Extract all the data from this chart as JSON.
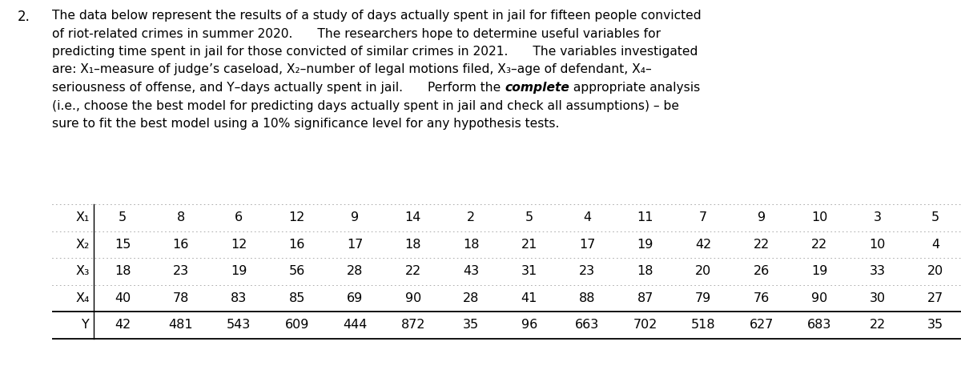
{
  "question_number": "2.",
  "lines": [
    "The data below represent the results of a study of days actually spent in jail for fifteen people convicted",
    "of riot-related crimes in summer 2020.  The researchers hope to determine useful variables for",
    "predicting time spent in jail for those convicted of similar crimes in 2021.  The variables investigated",
    "are: X₁–measure of judge’s caseload, X₂–number of legal motions filed, X₃–age of defendant, X₄–",
    "seriousness of offense, and Y–days actually spent in jail.  Perform the |complete| appropriate analysis",
    "(i.e., choose the best model for predicting days actually spent in jail and check all assumptions) – be",
    "sure to fit the best model using a 10% significance level for any hypothesis tests."
  ],
  "table": {
    "row_labels": [
      "X₁",
      "X₂",
      "X₃",
      "X₄",
      "Y"
    ],
    "data": [
      [
        5,
        8,
        6,
        12,
        9,
        14,
        2,
        5,
        4,
        11,
        7,
        9,
        10,
        3,
        5
      ],
      [
        15,
        16,
        12,
        16,
        17,
        18,
        18,
        21,
        17,
        19,
        42,
        22,
        22,
        10,
        4
      ],
      [
        18,
        23,
        19,
        56,
        28,
        22,
        43,
        31,
        23,
        18,
        20,
        26,
        19,
        33,
        20
      ],
      [
        40,
        78,
        83,
        85,
        69,
        90,
        28,
        41,
        88,
        87,
        79,
        76,
        90,
        30,
        27
      ],
      [
        42,
        481,
        543,
        609,
        444,
        872,
        35,
        96,
        663,
        702,
        518,
        627,
        683,
        22,
        35
      ]
    ]
  },
  "bg_color": "#ffffff",
  "text_color": "#000000",
  "font_family": "DejaVu Sans",
  "font_size": 11.2,
  "qnum_font_size": 12.0,
  "table_font_size": 11.5
}
